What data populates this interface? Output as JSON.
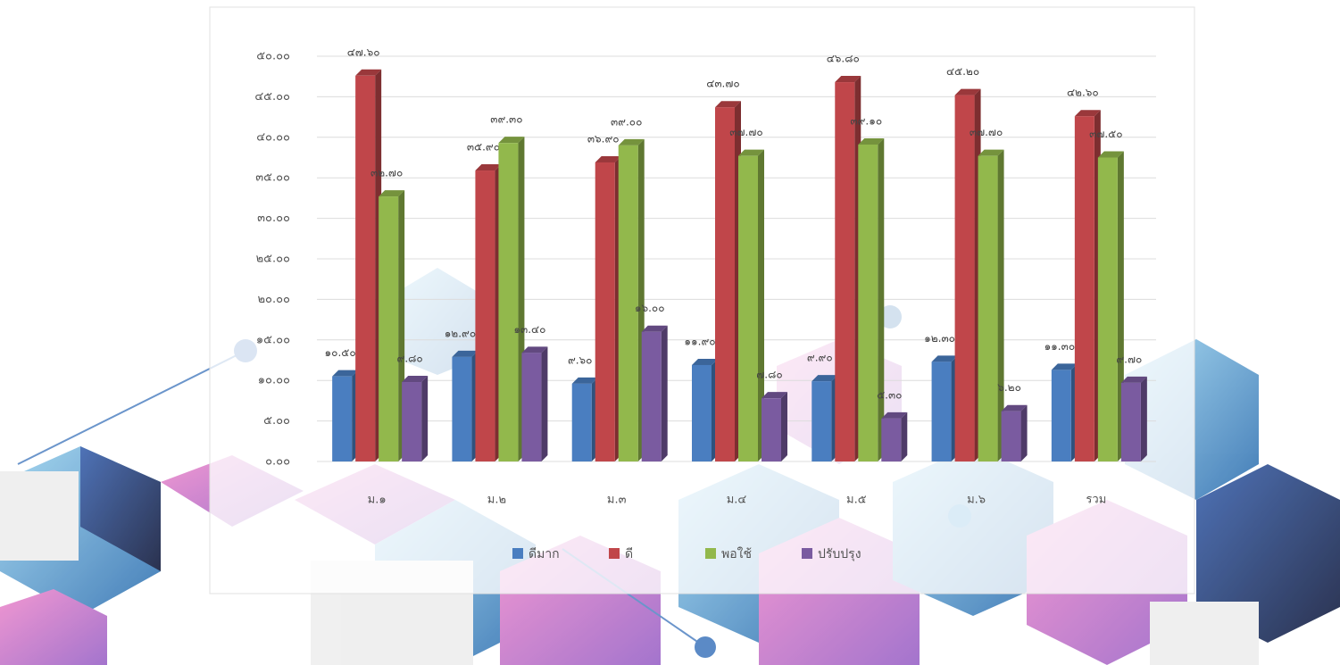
{
  "chart_data": {
    "type": "bar",
    "categories": [
      "ม.๑",
      "ม.๒",
      "ม.๓",
      "ม.๔",
      "ม.๕",
      "ม.๖",
      "รวม"
    ],
    "series": [
      {
        "name": "ดีมาก",
        "color": "#4a7ec0",
        "values": [
          10.5,
          12.9,
          9.6,
          11.9,
          9.9,
          12.3,
          11.3
        ],
        "value_labels": [
          "๑๐.๕๐",
          "๑๒.๙๐",
          "๙.๖๐",
          "๑๑.๙๐",
          "๙.๙๐",
          "๑๒.๓๐",
          "๑๑.๓๐"
        ]
      },
      {
        "name": "ดี",
        "color": "#c0464a",
        "values": [
          47.6,
          35.9,
          36.9,
          43.7,
          46.8,
          45.2,
          42.6
        ],
        "value_labels": [
          "๔๗.๖๐",
          "๓๕.๙๐",
          "๓๖.๙๐",
          "๔๓.๗๐",
          "๔๖.๘๐",
          "๔๕.๒๐",
          "๔๒.๖๐"
        ]
      },
      {
        "name": "พอใช้",
        "color": "#92b84c",
        "values": [
          32.7,
          39.3,
          39.0,
          37.7,
          39.1,
          37.7,
          37.5
        ],
        "value_labels": [
          "๓๒.๗๐",
          "๓๙.๓๐",
          "๓๙.๐๐",
          "๓๗.๗๐",
          "๓๙.๑๐",
          "๓๗.๗๐",
          "๓๗.๕๐"
        ]
      },
      {
        "name": "ปรับปรุง",
        "color": "#7a5ba0",
        "values": [
          9.8,
          13.4,
          16.0,
          7.8,
          5.3,
          6.2,
          9.7
        ],
        "value_labels": [
          "๙.๘๐",
          "๑๓.๔๐",
          "๑๖.๐๐",
          "๗.๘๐",
          "๕.๓๐",
          "๖.๒๐",
          "๙.๗๐"
        ]
      }
    ],
    "ylim": [
      0,
      50
    ],
    "yticks": [
      {
        "value": 0,
        "label": "๐.๐๐"
      },
      {
        "value": 5,
        "label": "๕.๐๐"
      },
      {
        "value": 10,
        "label": "๑๐.๐๐"
      },
      {
        "value": 15,
        "label": "๑๕.๐๐"
      },
      {
        "value": 20,
        "label": "๒๐.๐๐"
      },
      {
        "value": 25,
        "label": "๒๕.๐๐"
      },
      {
        "value": 30,
        "label": "๓๐.๐๐"
      },
      {
        "value": 35,
        "label": "๓๕.๐๐"
      },
      {
        "value": 40,
        "label": "๔๐.๐๐"
      },
      {
        "value": 45,
        "label": "๔๕.๐๐"
      },
      {
        "value": 50,
        "label": "๕๐.๐๐"
      }
    ],
    "grid": true
  }
}
